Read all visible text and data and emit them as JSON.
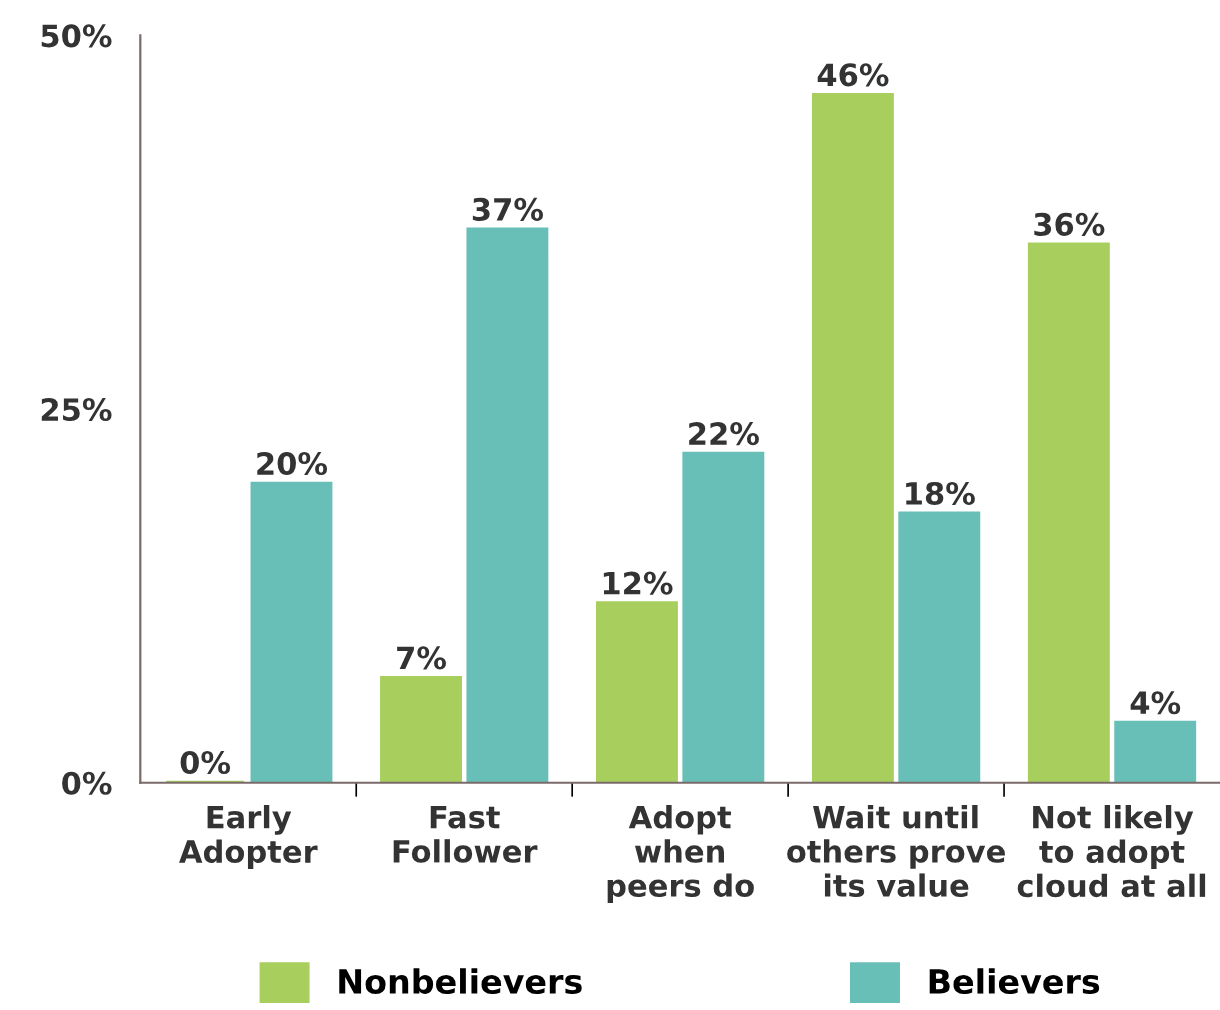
{
  "chart_data": {
    "type": "bar",
    "categories": [
      "Early\nAdopter",
      "Fast\nFollower",
      "Adopt\nwhen\npeers do",
      "Wait until\nothers prove\nits value",
      "Not likely\nto adopt\ncloud at all"
    ],
    "series": [
      {
        "name": "Nonbelievers",
        "color": "#a8cf5e",
        "values": [
          0,
          7,
          12,
          46,
          36
        ],
        "value_labels": [
          "0%",
          "7%",
          "12%",
          "46%",
          "36%"
        ]
      },
      {
        "name": "Believers",
        "color": "#68bfb7",
        "values": [
          20,
          37,
          22,
          18,
          4
        ],
        "value_labels": [
          "20%",
          "37%",
          "22%",
          "18%",
          "4%"
        ]
      }
    ],
    "ylim": [
      0,
      50
    ],
    "yticks": [
      {
        "value": 0,
        "label": "0%"
      },
      {
        "value": 25,
        "label": "25%"
      },
      {
        "value": 50,
        "label": "50%"
      }
    ],
    "grid": false,
    "legend": "bottom"
  }
}
